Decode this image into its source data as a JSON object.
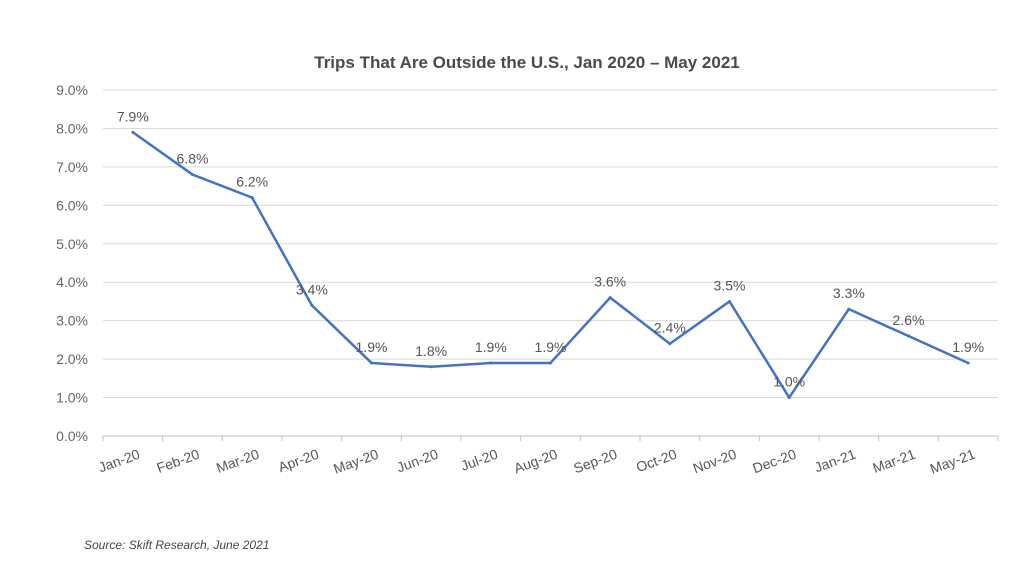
{
  "chart_data": {
    "type": "line",
    "title": "Trips That Are Outside the U.S., Jan 2020 – May 2021",
    "categories": [
      "Jan-20",
      "Feb-20",
      "Mar-20",
      "Apr-20",
      "May-20",
      "Jun-20",
      "Jul-20",
      "Aug-20",
      "Sep-20",
      "Oct-20",
      "Nov-20",
      "Dec-20",
      "Jan-21",
      "Mar-21",
      "May-21"
    ],
    "series": [
      {
        "values": [
          7.9,
          6.8,
          6.2,
          3.4,
          1.9,
          1.8,
          1.9,
          1.9,
          3.6,
          2.4,
          3.5,
          1.0,
          3.3,
          2.6,
          1.9
        ],
        "data_labels": [
          "7.9%",
          "6.8%",
          "6.2%",
          "3.4%",
          "1.9%",
          "1.8%",
          "1.9%",
          "1.9%",
          "3.6%",
          "2.4%",
          "3.5%",
          "1.0%",
          "3.3%",
          "2.6%",
          "1.9%"
        ]
      }
    ],
    "yticks": [
      "0.0%",
      "1.0%",
      "2.0%",
      "3.0%",
      "4.0%",
      "5.0%",
      "6.0%",
      "7.0%",
      "8.0%",
      "9.0%"
    ],
    "ylim": [
      0,
      9
    ],
    "xlabel": "",
    "ylabel": "",
    "grid": true,
    "legend": "none",
    "line_color": "#4472C4",
    "grid_color": "#d9d9d9"
  },
  "source": "Source: Skift Research, June 2021"
}
